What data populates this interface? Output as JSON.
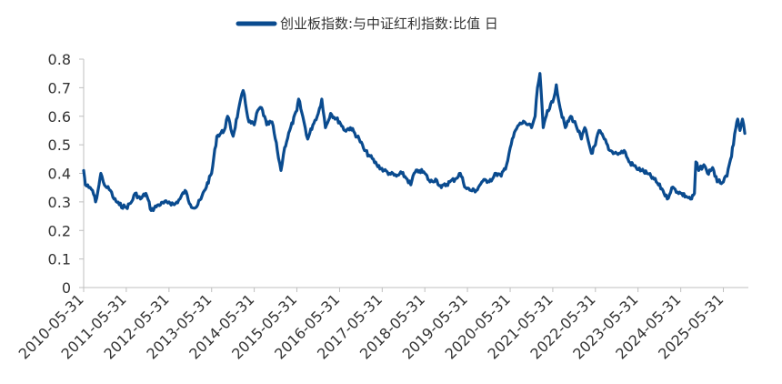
{
  "chart_data": {
    "type": "line",
    "title": "",
    "xlabel": "",
    "ylabel": "",
    "legend": {
      "placement": "top-center"
    },
    "grid": false,
    "ylim": [
      0,
      0.8
    ],
    "y_ticks": [
      "0",
      "0.1",
      "0.2",
      "0.3",
      "0.4",
      "0.5",
      "0.6",
      "0.7",
      "0.8"
    ],
    "x_range": [
      "2010-05-31",
      "2025-12-31"
    ],
    "x_ticks": [
      "2010-05-31",
      "2011-05-31",
      "2012-05-31",
      "2013-05-31",
      "2014-05-31",
      "2015-05-31",
      "2016-05-31",
      "2017-05-31",
      "2018-05-31",
      "2019-05-31",
      "2020-05-31",
      "2021-05-31",
      "2022-05-31",
      "2023-05-31",
      "2024-05-31",
      "2025-05-31"
    ],
    "colors": {
      "series": "#0a4b8f",
      "axis": "#bfbfbf"
    },
    "series": [
      {
        "name": "创业板指数:与中证红利指数:比值 日",
        "points": [
          [
            "2010-05-31",
            0.41
          ],
          [
            "2010-06-15",
            0.36
          ],
          [
            "2010-07-15",
            0.35
          ],
          [
            "2010-08-15",
            0.34
          ],
          [
            "2010-09-10",
            0.3
          ],
          [
            "2010-10-10",
            0.36
          ],
          [
            "2010-10-25",
            0.4
          ],
          [
            "2010-11-15",
            0.37
          ],
          [
            "2010-12-15",
            0.35
          ],
          [
            "2011-01-15",
            0.34
          ],
          [
            "2011-02-15",
            0.31
          ],
          [
            "2011-04-01",
            0.29
          ],
          [
            "2011-05-31",
            0.28
          ],
          [
            "2011-07-15",
            0.3
          ],
          [
            "2011-08-15",
            0.33
          ],
          [
            "2011-09-30",
            0.31
          ],
          [
            "2011-11-15",
            0.33
          ],
          [
            "2011-12-31",
            0.27
          ],
          [
            "2012-03-01",
            0.29
          ],
          [
            "2012-05-31",
            0.3
          ],
          [
            "2012-07-15",
            0.29
          ],
          [
            "2012-09-01",
            0.31
          ],
          [
            "2012-10-15",
            0.34
          ],
          [
            "2012-12-01",
            0.29
          ],
          [
            "2013-01-15",
            0.28
          ],
          [
            "2013-03-01",
            0.31
          ],
          [
            "2013-05-31",
            0.4
          ],
          [
            "2013-07-15",
            0.53
          ],
          [
            "2013-09-15",
            0.55
          ],
          [
            "2013-10-15",
            0.6
          ],
          [
            "2013-12-01",
            0.53
          ],
          [
            "2014-01-15",
            0.62
          ],
          [
            "2014-02-25",
            0.69
          ],
          [
            "2014-04-15",
            0.58
          ],
          [
            "2014-05-31",
            0.57
          ],
          [
            "2014-06-30",
            0.62
          ],
          [
            "2014-08-01",
            0.63
          ],
          [
            "2014-09-15",
            0.57
          ],
          [
            "2014-10-31",
            0.58
          ],
          [
            "2014-12-15",
            0.48
          ],
          [
            "2015-01-15",
            0.41
          ],
          [
            "2015-02-15",
            0.49
          ],
          [
            "2015-03-31",
            0.55
          ],
          [
            "2015-05-31",
            0.62
          ],
          [
            "2015-06-15",
            0.66
          ],
          [
            "2015-07-31",
            0.58
          ],
          [
            "2015-09-01",
            0.52
          ],
          [
            "2015-10-15",
            0.57
          ],
          [
            "2015-11-30",
            0.61
          ],
          [
            "2015-12-31",
            0.66
          ],
          [
            "2016-01-31",
            0.56
          ],
          [
            "2016-03-15",
            0.61
          ],
          [
            "2016-05-31",
            0.58
          ],
          [
            "2016-07-15",
            0.55
          ],
          [
            "2016-09-01",
            0.56
          ],
          [
            "2016-11-15",
            0.52
          ],
          [
            "2016-12-31",
            0.48
          ],
          [
            "2017-02-15",
            0.46
          ],
          [
            "2017-04-15",
            0.43
          ],
          [
            "2017-06-15",
            0.41
          ],
          [
            "2017-08-01",
            0.4
          ],
          [
            "2017-09-30",
            0.39
          ],
          [
            "2017-11-15",
            0.4
          ],
          [
            "2017-12-31",
            0.38
          ],
          [
            "2018-01-31",
            0.36
          ],
          [
            "2018-02-28",
            0.4
          ],
          [
            "2018-04-15",
            0.41
          ],
          [
            "2018-05-31",
            0.4
          ],
          [
            "2018-07-15",
            0.37
          ],
          [
            "2018-09-01",
            0.38
          ],
          [
            "2018-10-20",
            0.35
          ],
          [
            "2018-12-31",
            0.37
          ],
          [
            "2019-02-15",
            0.38
          ],
          [
            "2019-03-31",
            0.4
          ],
          [
            "2019-05-15",
            0.35
          ],
          [
            "2019-06-30",
            0.34
          ],
          [
            "2019-08-15",
            0.34
          ],
          [
            "2019-10-01",
            0.37
          ],
          [
            "2019-12-31",
            0.38
          ],
          [
            "2020-02-01",
            0.4
          ],
          [
            "2020-03-15",
            0.39
          ],
          [
            "2020-04-30",
            0.43
          ],
          [
            "2020-05-31",
            0.49
          ],
          [
            "2020-07-15",
            0.55
          ],
          [
            "2020-08-15",
            0.57
          ],
          [
            "2020-10-01",
            0.58
          ],
          [
            "2020-11-30",
            0.56
          ],
          [
            "2020-12-31",
            0.6
          ],
          [
            "2021-01-20",
            0.7
          ],
          [
            "2021-02-10",
            0.75
          ],
          [
            "2021-03-10",
            0.56
          ],
          [
            "2021-04-15",
            0.62
          ],
          [
            "2021-05-31",
            0.65
          ],
          [
            "2021-06-30",
            0.71
          ],
          [
            "2021-08-01",
            0.63
          ],
          [
            "2021-09-15",
            0.56
          ],
          [
            "2021-11-01",
            0.6
          ],
          [
            "2021-12-15",
            0.57
          ],
          [
            "2022-01-31",
            0.52
          ],
          [
            "2022-03-01",
            0.56
          ],
          [
            "2022-04-27",
            0.47
          ],
          [
            "2022-05-31",
            0.5
          ],
          [
            "2022-07-01",
            0.55
          ],
          [
            "2022-08-15",
            0.52
          ],
          [
            "2022-10-01",
            0.48
          ],
          [
            "2022-11-30",
            0.47
          ],
          [
            "2022-12-31",
            0.47
          ],
          [
            "2023-02-01",
            0.48
          ],
          [
            "2023-03-15",
            0.44
          ],
          [
            "2023-05-15",
            0.42
          ],
          [
            "2023-06-30",
            0.41
          ],
          [
            "2023-08-15",
            0.4
          ],
          [
            "2023-10-15",
            0.38
          ],
          [
            "2023-12-31",
            0.34
          ],
          [
            "2024-02-05",
            0.31
          ],
          [
            "2024-03-15",
            0.35
          ],
          [
            "2024-05-31",
            0.33
          ],
          [
            "2024-07-15",
            0.32
          ],
          [
            "2024-09-01",
            0.31
          ],
          [
            "2024-09-25",
            0.33
          ],
          [
            "2024-10-08",
            0.44
          ],
          [
            "2024-11-01",
            0.41
          ],
          [
            "2024-12-15",
            0.43
          ],
          [
            "2025-01-15",
            0.4
          ],
          [
            "2025-02-28",
            0.42
          ],
          [
            "2025-04-08",
            0.37
          ],
          [
            "2025-05-31",
            0.37
          ],
          [
            "2025-07-01",
            0.39
          ],
          [
            "2025-08-01",
            0.45
          ],
          [
            "2025-08-25",
            0.5
          ],
          [
            "2025-09-15",
            0.56
          ],
          [
            "2025-10-01",
            0.59
          ],
          [
            "2025-10-20",
            0.55
          ],
          [
            "2025-11-10",
            0.59
          ],
          [
            "2025-12-01",
            0.54
          ]
        ]
      }
    ]
  }
}
